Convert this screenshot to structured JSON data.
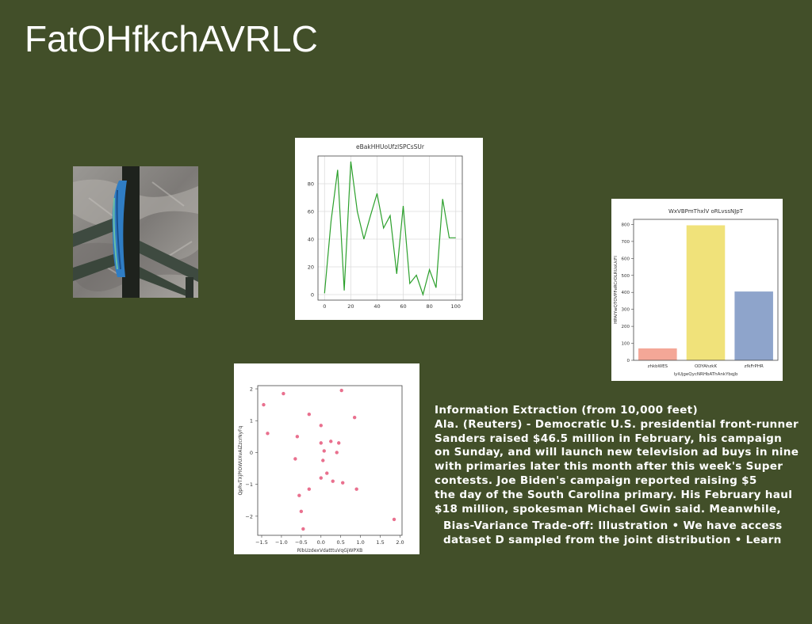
{
  "title": "FatOHfkchAVRLC",
  "colors": {
    "background": "#424f29",
    "line": "#2ca02c",
    "scatter": "#e9708e",
    "bars": [
      "#f4a797",
      "#f0e27a",
      "#8ea4cb"
    ]
  },
  "photo": {
    "description_icon": "fence-with-towel-photo"
  },
  "text_block": {
    "lines": [
      "Information Extraction (from 10,000 feet)",
      "Ala. (Reuters) - Democratic U.S. presidential front-runner",
      "Sanders raised $46.5 million in February, his campaign",
      "on Sunday, and will launch new television ad buys in nine",
      "with primaries later this month after this week's Super",
      "contests. Joe Biden's campaign reported raising $5",
      "the day of the South Carolina primary. His February haul",
      "$18 million, spokesman Michael Gwin said. Meanwhile,"
    ],
    "lines2": [
      "Bias-Variance Trade-off: Illustration • We have access",
      "dataset D sampled from the joint distribution • Learn"
    ]
  },
  "chart_data": [
    {
      "type": "line",
      "title": "eBakHHUoUfzlSPCsSUr",
      "xlabel": "",
      "ylabel": "",
      "x": [
        0,
        5,
        10,
        15,
        20,
        25,
        30,
        35,
        40,
        45,
        50,
        55,
        60,
        65,
        70,
        75,
        80,
        85,
        90,
        95,
        100
      ],
      "y": [
        1,
        53,
        90,
        3,
        96,
        60,
        40,
        57,
        73,
        48,
        57,
        15,
        64,
        8,
        14,
        0,
        18,
        5,
        69,
        41,
        41
      ],
      "xlim": [
        -5,
        105
      ],
      "ylim": [
        -4,
        100
      ],
      "xticks": [
        "0",
        "20",
        "40",
        "60",
        "80",
        "100"
      ],
      "yticks": [
        "0",
        "20",
        "40",
        "60",
        "80"
      ],
      "grid": true
    },
    {
      "type": "bar",
      "title": "WxVBPmThxlV oRLvssNJpT",
      "xlabel": "lyiUjgeQycNRHbAThAnkYbqjb",
      "ylabel": "HPAIYwQTOVPFeRCrOLRUoUcFI",
      "categories": [
        "zhkbWES",
        "ODYAhzkK",
        "zfkFrPHR"
      ],
      "values": [
        70,
        795,
        405
      ],
      "ylim": [
        0,
        830
      ],
      "yticks": [
        "0",
        "100",
        "200",
        "300",
        "400",
        "500",
        "600",
        "700",
        "800"
      ]
    },
    {
      "type": "scatter",
      "title": "",
      "xlabel": "RlbUzdexVdatttuVqGjWPXB",
      "ylabel": "QpRvTXjPIOWUXvAiZzcrNyFq",
      "x": [
        -1.45,
        -1.35,
        -0.95,
        -0.65,
        -0.55,
        -0.6,
        -0.5,
        -0.45,
        -0.3,
        -0.3,
        0.0,
        0.0,
        0.05,
        0.08,
        0.0,
        0.15,
        0.25,
        0.3,
        0.4,
        0.45,
        0.55,
        0.52,
        0.85,
        0.9,
        1.85
      ],
      "y": [
        1.5,
        0.6,
        1.85,
        -0.2,
        -1.35,
        0.5,
        -1.85,
        -2.4,
        1.2,
        -1.15,
        0.85,
        0.3,
        -0.25,
        0.05,
        -0.8,
        -0.65,
        0.35,
        -0.9,
        0.0,
        0.3,
        -0.95,
        1.95,
        1.1,
        -1.15,
        -2.1
      ],
      "xlim": [
        -1.6,
        2.05
      ],
      "ylim": [
        -2.6,
        2.1
      ],
      "xticks": [
        "−1.5",
        "−1.0",
        "−0.5",
        "0.0",
        "0.5",
        "1.0",
        "1.5",
        "2.0"
      ],
      "yticks": [
        "−2",
        "−1",
        "0",
        "1",
        "2"
      ]
    }
  ]
}
